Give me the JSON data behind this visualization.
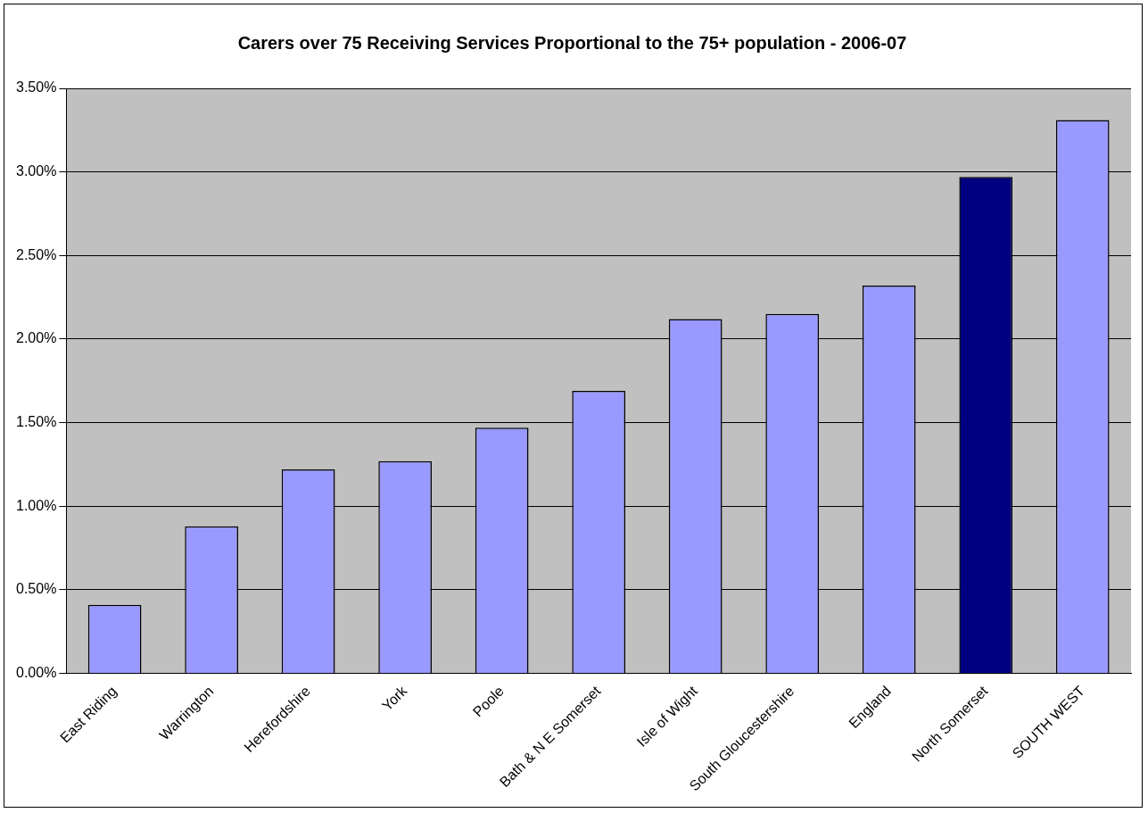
{
  "chart_data": {
    "type": "bar",
    "title": "Carers over 75 Receiving Services Proportional to the 75+ population - 2006-07",
    "categories": [
      "East Riding",
      "Warrington",
      "Herefordshire",
      "York",
      "Poole",
      "Bath & N E Somerset",
      "Isle of Wight",
      "South Gloucestershire",
      "England",
      "North Somerset",
      "SOUTH WEST"
    ],
    "values": [
      0.41,
      0.88,
      1.22,
      1.27,
      1.47,
      1.69,
      2.12,
      2.15,
      2.32,
      2.97,
      3.31
    ],
    "colors": [
      "#9999ff",
      "#9999ff",
      "#9999ff",
      "#9999ff",
      "#9999ff",
      "#9999ff",
      "#9999ff",
      "#9999ff",
      "#9999ff",
      "#000080",
      "#9999ff"
    ],
    "ylim": [
      0,
      3.5
    ],
    "yticks": [
      {
        "value": 0,
        "label": "0.00%"
      },
      {
        "value": 0.5,
        "label": "0.50%"
      },
      {
        "value": 1,
        "label": "1.00%"
      },
      {
        "value": 1.5,
        "label": "1.50%"
      },
      {
        "value": 2,
        "label": "2.00%"
      },
      {
        "value": 2.5,
        "label": "2.50%"
      },
      {
        "value": 3,
        "label": "3.00%"
      },
      {
        "value": 3.5,
        "label": "3.50%"
      }
    ],
    "grid": "y",
    "legend": false
  }
}
